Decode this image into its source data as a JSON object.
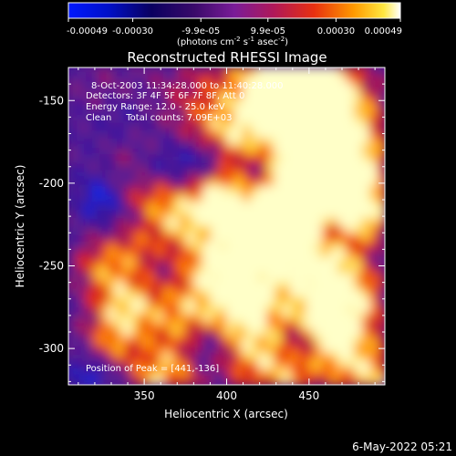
{
  "colorbar": {
    "tick_labels": [
      "-0.00049",
      "-0.00030",
      "-9.9e-05",
      "9.9e-05",
      "0.00030",
      "0.00049"
    ],
    "tick_values": [
      -0.00049,
      -0.0003,
      -9.9e-05,
      9.9e-05,
      0.0003,
      0.00049
    ],
    "range": [
      -0.00049,
      0.00049
    ],
    "unit_main": "(photons cm",
    "unit_sup1": "-2",
    "unit_mid": " s",
    "unit_sup2": "-1",
    "unit_mid2": " asec",
    "unit_sup3": "-2",
    "unit_end": ")"
  },
  "chart_data": {
    "type": "heatmap",
    "title": "Reconstructed RHESSI Image",
    "xlabel": "Heliocentric X (arcsec)",
    "ylabel": "Heliocentric Y (arcsec)",
    "xlim": [
      304,
      496
    ],
    "ylim": [
      -322,
      -130
    ],
    "x_ticks": [
      350,
      400,
      450
    ],
    "y_ticks": [
      -150,
      -200,
      -250,
      -300
    ],
    "x_tick_labels": [
      "350",
      "400",
      "450"
    ],
    "y_tick_labels": [
      "-150",
      "-200",
      "-250",
      "-300"
    ],
    "colormap": "purple-red-yellow-white",
    "value_range": [
      -0.00049,
      0.00049
    ],
    "grid": false,
    "annotations": [
      "8-Oct-2003 11:34:28.000 to 11:40:28.000",
      "Detectors: 3F 4F 5F 6F 7F 8F, Att 0",
      "Energy Range: 12.0 - 25.0 keV",
      "Clean     Total counts: 7.09E+03"
    ],
    "peak_label": "Position of Peak = [441,-136]",
    "peak": [
      441,
      -136
    ]
  },
  "footer": {
    "timestamp": "6-May-2022 05:21"
  }
}
